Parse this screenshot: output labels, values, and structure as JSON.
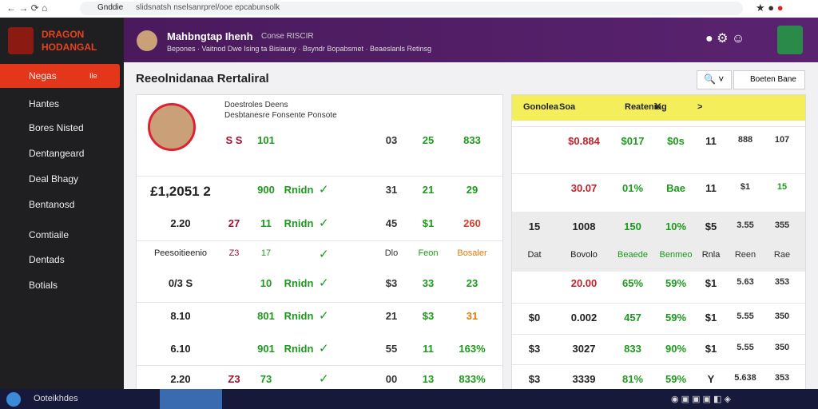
{
  "browser": {
    "tab": "Gnddie",
    "url": "slidsnatsh nselsanrprel/ooe epcabunsolk"
  },
  "sidebar": {
    "brand": [
      "DRAGON",
      "HODANGAL"
    ],
    "badge": "Ile",
    "items": [
      "Negas",
      "Hantes",
      "Bores Nisted",
      "Dentangeard",
      "Deal Bhagy",
      "Bentanosd",
      "Comtiaile",
      "Dentads",
      "Botials"
    ]
  },
  "header": {
    "title": "Mahbngtap Ihenh",
    "tag": "Conse RISCIR",
    "subtitle": "Bepones · Vaitnod Dwe Ising ta Bisiauny · Bsyndr Bopabsmet · Beaeslanls Retinsg"
  },
  "content": {
    "title": "Reeolnidanaa Rertaliral",
    "filter": "Boeten Bane"
  },
  "left_table": {
    "caption": "Doestroles Deens",
    "subcaption": "Desbtanesre Fonsente Ponsote",
    "rows": [
      [
        "",
        "S S",
        "101",
        "",
        "03",
        "25",
        "833"
      ],
      [
        "£1,2051 2",
        "",
        "900",
        "Rnidn",
        "31",
        "21",
        "29"
      ],
      [
        "2.20",
        "27",
        "11",
        "Rnidn",
        "45",
        "$1",
        "260"
      ],
      [
        "Peesoitieenio",
        "Z3",
        "17",
        "",
        "Dlo",
        "Feon",
        "Bosaler"
      ],
      [
        "0/3 S",
        "",
        "10",
        "Rnidn",
        "$3",
        "33",
        "23"
      ],
      [
        "8.10",
        "",
        "801",
        "Rnidn",
        "21",
        "$3",
        "31"
      ],
      [
        "6.10",
        "",
        "901",
        "Rnidn",
        "55",
        "11",
        "163%"
      ],
      [
        "2.20",
        "Z3",
        "73",
        "",
        "00",
        "13",
        "833%"
      ]
    ]
  },
  "right_table": {
    "header": [
      "Gonolea",
      "Soa",
      "Reatenia",
      "Kg",
      ">"
    ],
    "rows": [
      [
        "",
        "$0.884",
        "$017",
        "$0s",
        "11",
        "888",
        "107"
      ],
      [
        "",
        "30.07",
        "01%",
        "Bae",
        "11",
        "$1",
        "15"
      ],
      [
        "15",
        "1008",
        "150",
        "10%",
        "$5",
        "3.55",
        "355"
      ],
      [
        "Dat",
        "Bovolo",
        "Beaede",
        "Benmeo",
        "Rnla",
        "Reen",
        "Rae"
      ],
      [
        "",
        "20.00",
        "65%",
        "59%",
        "$1",
        "5.63",
        "353"
      ],
      [
        "$0",
        "0.002",
        "457",
        "59%",
        "$1",
        "5.55",
        "350"
      ],
      [
        "$3",
        "3027",
        "833",
        "90%",
        "$1",
        "5.55",
        "350"
      ],
      [
        "$3",
        "3339",
        "81%",
        "59%",
        "Y",
        "5.638",
        "353"
      ]
    ]
  },
  "taskbar": {
    "start": "Ooteikhdes"
  }
}
